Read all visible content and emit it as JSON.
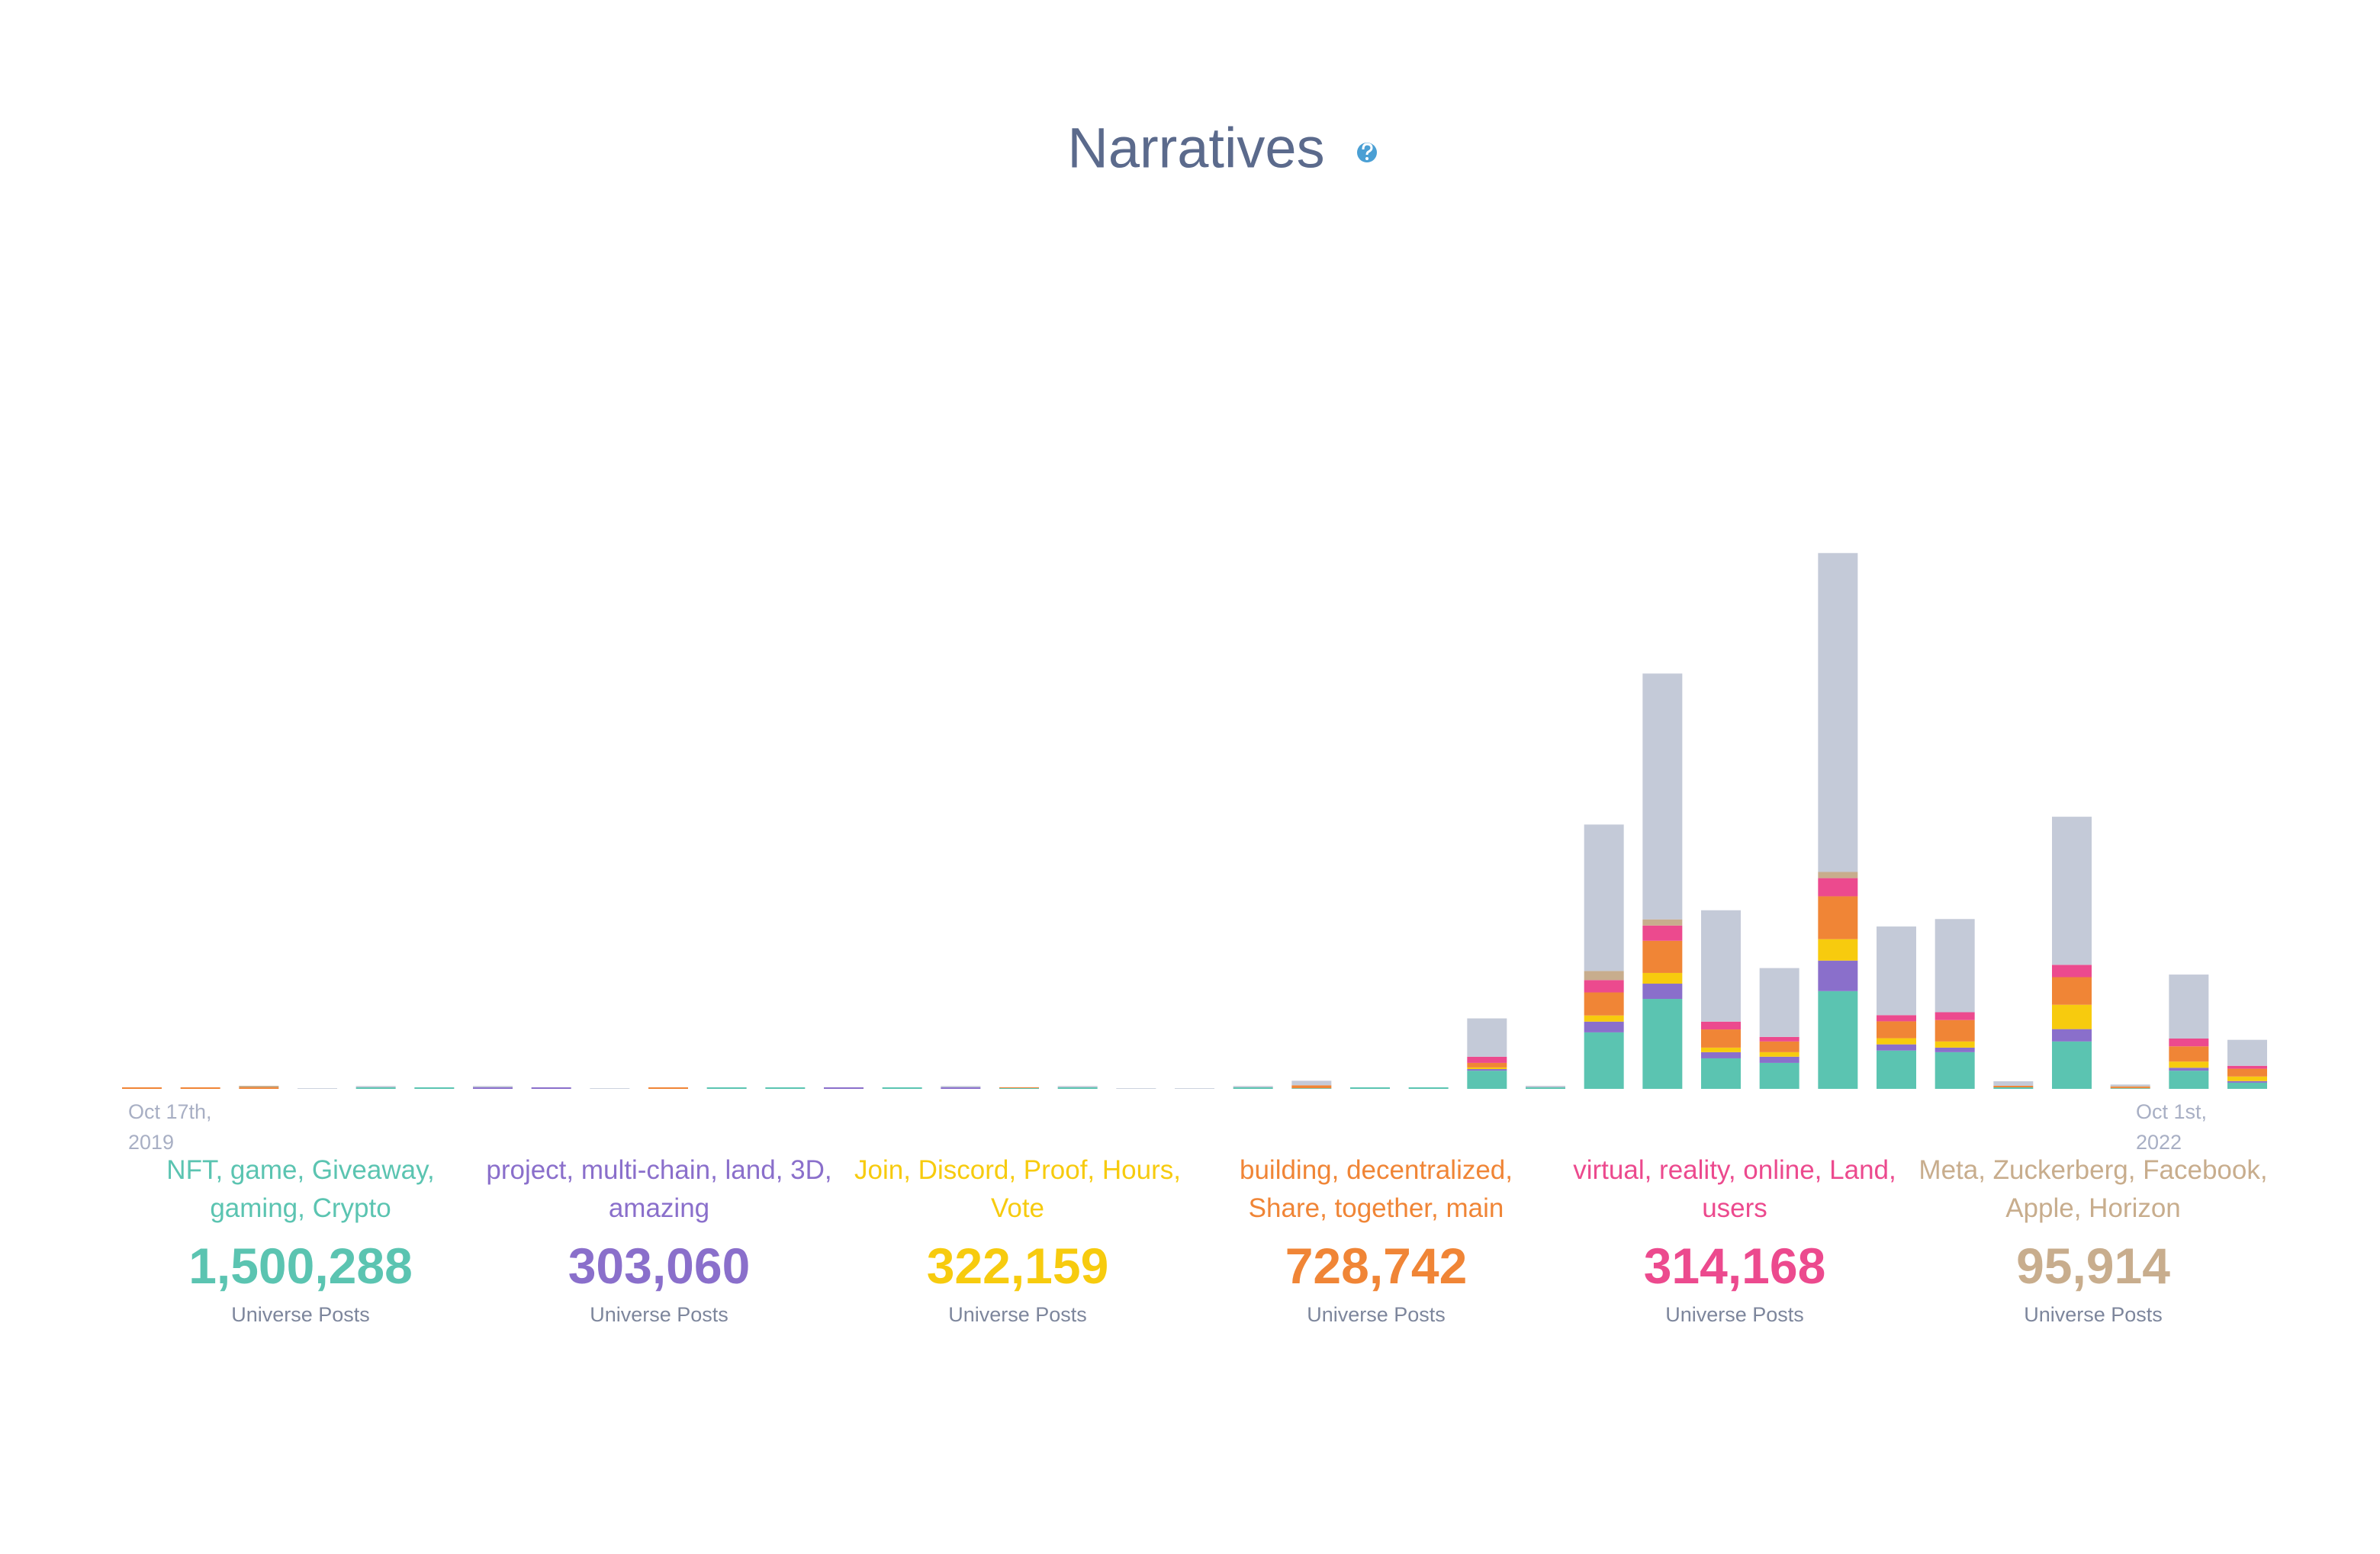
{
  "chart_data": {
    "type": "stacked-bar",
    "title": "Narratives",
    "categories": [
      "Oct 17th, 2019",
      null,
      null,
      null,
      null,
      null,
      null,
      null,
      null,
      null,
      null,
      null,
      null,
      null,
      null,
      null,
      null,
      null,
      null,
      null,
      null,
      null,
      null,
      null,
      null,
      null,
      null,
      null,
      null,
      null,
      null,
      null,
      null,
      null,
      null,
      null,
      "Oct 1st, 2022"
    ],
    "ylim": [
      0,
      1700000
    ],
    "series": [
      {
        "name": "NFT, game, Giveaway, gaming, Crypto",
        "color": "#5bc4b1",
        "total": 1500288,
        "total_label": "1,500,288",
        "unit": "Universe Posts",
        "values": [
          0,
          0,
          0,
          0,
          4700,
          4700,
          0,
          0,
          0,
          0,
          4700,
          4700,
          0,
          4700,
          0,
          2500,
          4700,
          0,
          0,
          4700,
          2000,
          4700,
          4700,
          56000,
          4700,
          174000,
          277000,
          94000,
          80000,
          301000,
          118000,
          113000,
          4700,
          146000,
          2000,
          56000,
          19000
        ]
      },
      {
        "name": "project, multi-chain, land, 3D, amazing",
        "color": "#8a6fcb",
        "total": 303060,
        "total_label": "303,060",
        "unit": "Universe Posts",
        "values": [
          0,
          0,
          0,
          0,
          0,
          0,
          4700,
          4700,
          0,
          0,
          0,
          0,
          4700,
          0,
          4700,
          0,
          0,
          0,
          0,
          0,
          0,
          0,
          0,
          5000,
          0,
          33000,
          47000,
          19000,
          19000,
          94000,
          19000,
          14000,
          0,
          38000,
          0,
          9000,
          5000
        ]
      },
      {
        "name": "Join, Discord, Proof, Hours, Vote",
        "color": "#f7cb0e",
        "total": 322159,
        "total_label": "322,159",
        "unit": "Universe Posts",
        "values": [
          0,
          0,
          0,
          0,
          0,
          0,
          0,
          0,
          0,
          0,
          0,
          0,
          0,
          0,
          0,
          0,
          0,
          0,
          0,
          0,
          0,
          0,
          0,
          5000,
          0,
          19000,
          33000,
          14000,
          14000,
          66000,
          19000,
          19000,
          0,
          75000,
          0,
          19000,
          14000
        ]
      },
      {
        "name": "building, decentralized, Share, together, main",
        "color": "#f08536",
        "total": 728742,
        "total_label": "728,742",
        "unit": "Universe Posts",
        "values": [
          4700,
          4700,
          4700,
          0,
          0,
          0,
          0,
          0,
          0,
          4700,
          0,
          0,
          0,
          0,
          0,
          2500,
          0,
          0,
          0,
          0,
          9000,
          0,
          0,
          14000,
          0,
          71000,
          99000,
          56000,
          33000,
          132000,
          52000,
          66000,
          4700,
          85000,
          4700,
          47000,
          24000
        ]
      },
      {
        "name": "virtual, reality, online, Land, users",
        "color": "#ec4a8e",
        "total": 314168,
        "total_label": "314,168",
        "unit": "Universe Posts",
        "values": [
          0,
          0,
          0,
          0,
          0,
          0,
          0,
          0,
          0,
          0,
          0,
          0,
          0,
          0,
          0,
          0,
          0,
          0,
          0,
          0,
          0,
          0,
          0,
          19000,
          0,
          38000,
          47000,
          24000,
          14000,
          56000,
          19000,
          24000,
          0,
          38000,
          0,
          24000,
          9000
        ]
      },
      {
        "name": "Meta, Zuckerberg, Facebook, Apple, Horizon",
        "color": "#c8ad8d",
        "total": 95914,
        "total_label": "95,914",
        "unit": "Universe Posts",
        "values": [
          0,
          0,
          4700,
          0,
          0,
          0,
          0,
          0,
          0,
          0,
          0,
          0,
          0,
          0,
          0,
          0,
          0,
          0,
          0,
          0,
          0,
          0,
          0,
          0,
          0,
          28000,
          19000,
          0,
          0,
          19000,
          0,
          0,
          0,
          0,
          2000,
          0,
          0
        ]
      },
      {
        "name": null,
        "color": "#c4cad8",
        "values": [
          0,
          0,
          0,
          2000,
          4000,
          0,
          4000,
          0,
          2000,
          0,
          0,
          0,
          0,
          0,
          4000,
          0,
          4000,
          2000,
          2000,
          4000,
          14000,
          0,
          0,
          118000,
          4700,
          451000,
          757000,
          343000,
          212000,
          982000,
          273000,
          287000,
          14000,
          456000,
          4700,
          197000,
          80000
        ]
      }
    ]
  }
}
